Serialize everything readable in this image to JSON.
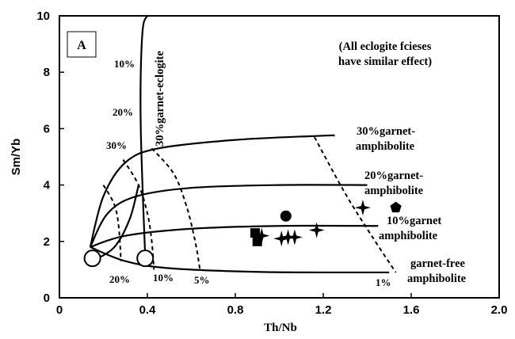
{
  "chart_data": {
    "type": "scatter",
    "panel_label": "A",
    "xlabel": "Th/Nb",
    "ylabel": "Sm/Yb",
    "xlim": [
      0,
      2.0
    ],
    "ylim": [
      0,
      10
    ],
    "x_ticks": [
      "0",
      "0.4",
      "0.8",
      "1.2",
      "1.6",
      "2.0"
    ],
    "y_ticks": [
      "0",
      "2",
      "4",
      "6",
      "8",
      "10"
    ],
    "x_tick_values": [
      0,
      0.4,
      0.8,
      1.2,
      1.6,
      2.0
    ],
    "y_tick_values": [
      0,
      2,
      4,
      6,
      8,
      10
    ],
    "grid": false,
    "note_line1": "(All eclogite fcieses",
    "note_line2": "have similar effect)",
    "model_labels": {
      "eclogite": "30%garnet-eclogite",
      "amph30_a": "30%garnet-",
      "amph30_b": "amphibolite",
      "amph20_a": "20%garnet-",
      "amph20_b": "amphibolite",
      "amph10_a": "10%garnet",
      "amph10_b": "amphibolite",
      "amph0_a": "garnet-free",
      "amph0_b": "amphibolite"
    },
    "melt_labels": {
      "e10": "10%",
      "e20": "20%",
      "e30": "30%",
      "b20": "20%",
      "b10": "10%",
      "b5": "5%",
      "b1": "1%"
    },
    "model_curves": [
      {
        "id": "garnet-eclogite-30",
        "points": [
          [
            0.39,
            1.5
          ],
          [
            0.38,
            3.5
          ],
          [
            0.37,
            6.0
          ],
          [
            0.37,
            8.0
          ],
          [
            0.38,
            9.6
          ],
          [
            0.4,
            10.0
          ]
        ]
      },
      {
        "id": "garnet-amphibolite-30",
        "points": [
          [
            0.14,
            1.8
          ],
          [
            0.2,
            3.6
          ],
          [
            0.3,
            4.8
          ],
          [
            0.45,
            5.3
          ],
          [
            0.8,
            5.6
          ],
          [
            1.2,
            5.75
          ],
          [
            1.25,
            5.75
          ]
        ]
      },
      {
        "id": "garnet-amphibolite-20",
        "points": [
          [
            0.14,
            1.8
          ],
          [
            0.22,
            3.0
          ],
          [
            0.35,
            3.6
          ],
          [
            0.6,
            3.9
          ],
          [
            1.0,
            4.0
          ],
          [
            1.4,
            4.0
          ]
        ]
      },
      {
        "id": "garnet-amphibolite-10",
        "points": [
          [
            0.14,
            1.8
          ],
          [
            0.3,
            2.2
          ],
          [
            0.6,
            2.45
          ],
          [
            1.0,
            2.55
          ],
          [
            1.45,
            2.55
          ]
        ]
      },
      {
        "id": "garnet-free-amphibolite",
        "points": [
          [
            0.14,
            1.8
          ],
          [
            0.3,
            1.3
          ],
          [
            0.5,
            1.05
          ],
          [
            0.9,
            0.92
          ],
          [
            1.3,
            0.9
          ],
          [
            1.5,
            0.9
          ]
        ]
      },
      {
        "id": "eclogite-lower",
        "points": [
          [
            0.15,
            1.3
          ],
          [
            0.25,
            1.8
          ],
          [
            0.32,
            2.8
          ],
          [
            0.36,
            4.0
          ]
        ]
      }
    ],
    "melt_fraction_lines": [
      {
        "id": "melt-1",
        "points": [
          [
            1.16,
            5.7
          ],
          [
            1.3,
            3.7
          ],
          [
            1.42,
            2.2
          ],
          [
            1.53,
            0.9
          ]
        ]
      },
      {
        "id": "melt-5",
        "points": [
          [
            0.42,
            5.3
          ],
          [
            0.52,
            4.4
          ],
          [
            0.58,
            3.2
          ],
          [
            0.62,
            1.9
          ],
          [
            0.64,
            0.95
          ]
        ]
      },
      {
        "id": "melt-10",
        "points": [
          [
            0.29,
            4.9
          ],
          [
            0.36,
            4.0
          ],
          [
            0.4,
            3.0
          ],
          [
            0.42,
            2.0
          ],
          [
            0.43,
            1.0
          ]
        ]
      },
      {
        "id": "melt-20",
        "points": [
          [
            0.2,
            4.0
          ],
          [
            0.25,
            3.3
          ],
          [
            0.27,
            2.5
          ],
          [
            0.28,
            1.3
          ]
        ]
      }
    ],
    "source_points": [
      [
        0.15,
        1.4
      ],
      [
        0.39,
        1.4
      ]
    ],
    "samples": [
      {
        "marker": "square",
        "x": 0.89,
        "y": 2.3
      },
      {
        "marker": "square",
        "x": 0.9,
        "y": 2.0
      },
      {
        "marker": "star",
        "x": 0.92,
        "y": 2.2
      },
      {
        "marker": "circle",
        "x": 1.03,
        "y": 2.9
      },
      {
        "marker": "star",
        "x": 1.01,
        "y": 2.1
      },
      {
        "marker": "star",
        "x": 1.04,
        "y": 2.15
      },
      {
        "marker": "star",
        "x": 1.07,
        "y": 2.15
      },
      {
        "marker": "star",
        "x": 1.17,
        "y": 2.4
      },
      {
        "marker": "star",
        "x": 1.38,
        "y": 3.2
      },
      {
        "marker": "pentagon",
        "x": 1.53,
        "y": 3.2
      }
    ]
  }
}
